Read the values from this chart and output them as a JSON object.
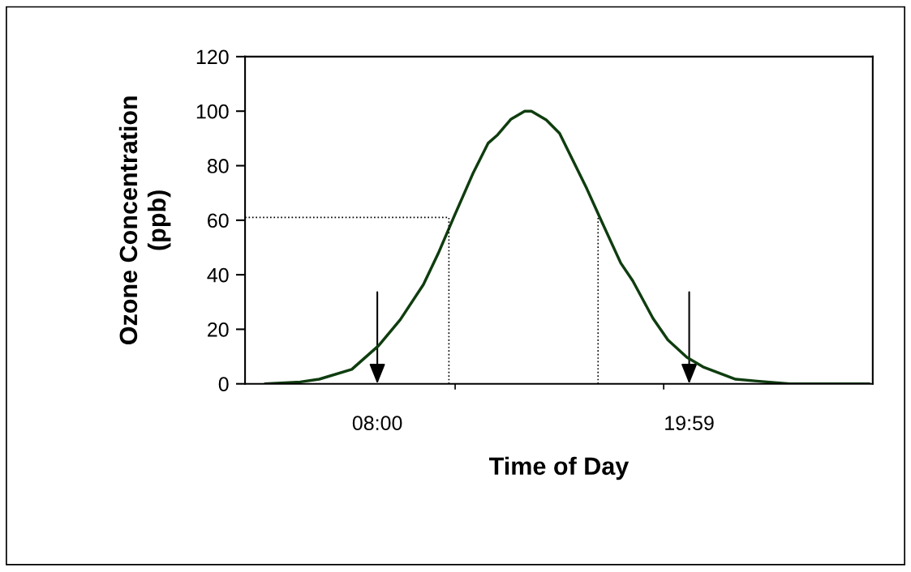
{
  "chart_data": {
    "type": "line",
    "xlabel": "Time of Day",
    "ylabel": "Ozone Concentration\n(ppb)",
    "series": [
      {
        "color": "#0f3d0f",
        "x": [
          3.69,
          5.04,
          5.77,
          7.02,
          8.05,
          8.88,
          9.77,
          10.34,
          10.96,
          11.69,
          12.26,
          12.62,
          13.14,
          13.66,
          13.92,
          14.49,
          15.0,
          16.05,
          16.52,
          17.35,
          17.81,
          18.59,
          19.16,
          19.89,
          20.51,
          21.76,
          22.59,
          23.84,
          26.9
        ],
        "values": [
          0,
          0.7,
          1.7,
          5.3,
          14,
          23.5,
          36.4,
          47.8,
          61.6,
          77.5,
          88.3,
          91.3,
          97.1,
          100,
          100,
          96.8,
          91.9,
          71.5,
          61.6,
          44.3,
          37.8,
          24,
          16.1,
          9.7,
          6.2,
          1.7,
          1,
          0,
          0
        ]
      }
    ],
    "xlim": [
      2.92,
      27.03
    ],
    "xticks": [
      {
        "value": 8,
        "label": "08:00"
      },
      {
        "value": 10.99,
        "label": null
      },
      {
        "value": 19.0,
        "label": null
      },
      {
        "value": 19.98,
        "label": "19:59"
      }
    ],
    "ylim": [
      0,
      120
    ],
    "yticks": [
      0,
      20,
      40,
      60,
      80,
      100,
      120
    ],
    "ref_lines": [
      {
        "axis": "y",
        "value": 61,
        "line_style": "dotted",
        "color": "#000000"
      },
      {
        "axis": "x",
        "value": 10.75,
        "line_style": "dotted",
        "color": "#000000"
      },
      {
        "axis": "x",
        "value": 16.48,
        "line_style": "dotted",
        "color": "#000000"
      }
    ],
    "grid": false,
    "marker": "none",
    "line_style": "solid"
  }
}
